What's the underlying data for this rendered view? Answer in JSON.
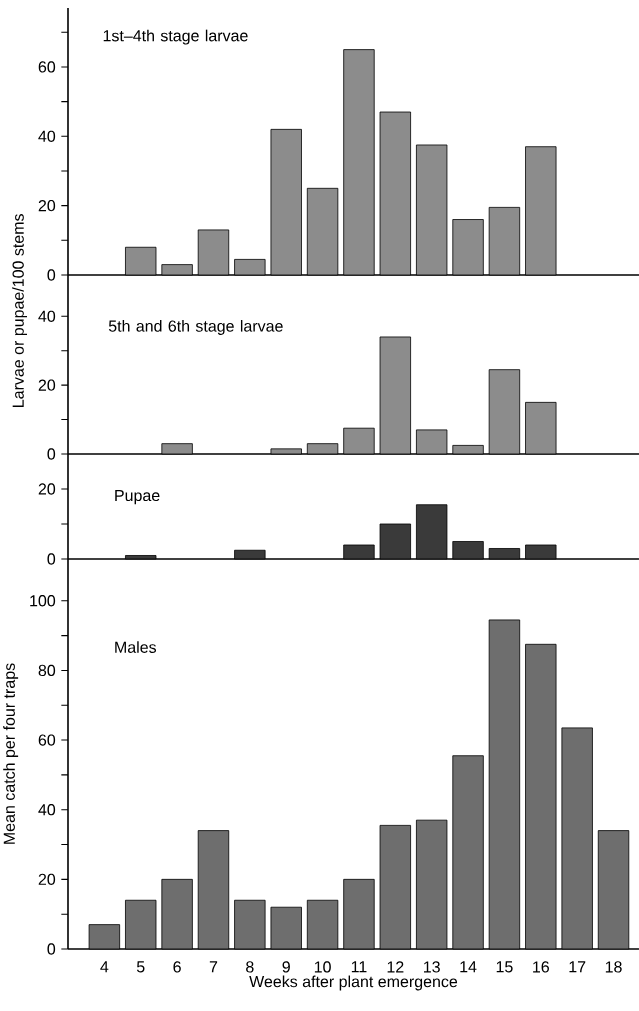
{
  "chart_data": [
    {
      "type": "bar",
      "title": "1st–4th stage larvae",
      "categories": [
        "4",
        "5",
        "6",
        "7",
        "8",
        "9",
        "10",
        "11",
        "12",
        "13",
        "14",
        "15",
        "16",
        "17",
        "18"
      ],
      "values": [
        null,
        8,
        3,
        13,
        4.5,
        42,
        25,
        65,
        47,
        37.5,
        16,
        19.5,
        37,
        null,
        null
      ],
      "color": "#8c8c8c",
      "ylim": [
        0,
        77
      ],
      "yticks": [
        0,
        {
          "value": 10,
          "label": null
        },
        20,
        {
          "value": 30,
          "label": null
        },
        40,
        {
          "value": 50,
          "label": null
        },
        60,
        {
          "value": 70,
          "label": null
        }
      ],
      "tick_labels": "y"
    },
    {
      "type": "bar",
      "title": "5th and 6th stage larvae",
      "ylabel": "Larvae or pupae/100 stems",
      "categories": [
        "4",
        "5",
        "6",
        "7",
        "8",
        "9",
        "10",
        "11",
        "12",
        "13",
        "14",
        "15",
        "16",
        "17",
        "18"
      ],
      "values": [
        null,
        null,
        3,
        null,
        null,
        1.5,
        3,
        7.5,
        34,
        7,
        2.5,
        24.5,
        15,
        null,
        null
      ],
      "color": "#8c8c8c",
      "ylim": [
        0,
        52
      ],
      "yticks": [
        0,
        {
          "value": 10,
          "label": null
        },
        20,
        {
          "value": 30,
          "label": null
        },
        40
      ],
      "tick_labels": "y"
    },
    {
      "type": "bar",
      "title": "Pupae",
      "categories": [
        "4",
        "5",
        "6",
        "7",
        "8",
        "9",
        "10",
        "11",
        "12",
        "13",
        "14",
        "15",
        "16",
        "17",
        "18"
      ],
      "values": [
        null,
        1,
        null,
        null,
        2.5,
        null,
        null,
        4,
        10,
        15.5,
        5,
        3,
        4,
        null,
        null
      ],
      "color": "#3a3a3a",
      "ylim": [
        0,
        30
      ],
      "yticks": [
        0,
        {
          "value": 10,
          "label": null
        },
        20
      ],
      "tick_labels": "y"
    },
    {
      "type": "bar",
      "title": "Males",
      "ylabel": "Mean catch per four traps",
      "xlabel": "Weeks after plant emergence",
      "categories": [
        "4",
        "5",
        "6",
        "7",
        "8",
        "9",
        "10",
        "11",
        "12",
        "13",
        "14",
        "15",
        "16",
        "17",
        "18"
      ],
      "values": [
        7,
        14,
        20,
        34,
        14,
        12,
        14,
        20,
        35.5,
        37,
        55.5,
        94.5,
        87.5,
        63.5,
        34
      ],
      "color": "#6e6e6e",
      "ylim": [
        0,
        112
      ],
      "yticks": [
        0,
        {
          "value": 10,
          "label": null
        },
        20,
        {
          "value": 30,
          "label": null
        },
        40,
        {
          "value": 50,
          "label": null
        },
        60,
        {
          "value": 70,
          "label": null
        },
        80,
        {
          "value": 90,
          "label": null
        },
        100
      ]
    }
  ]
}
